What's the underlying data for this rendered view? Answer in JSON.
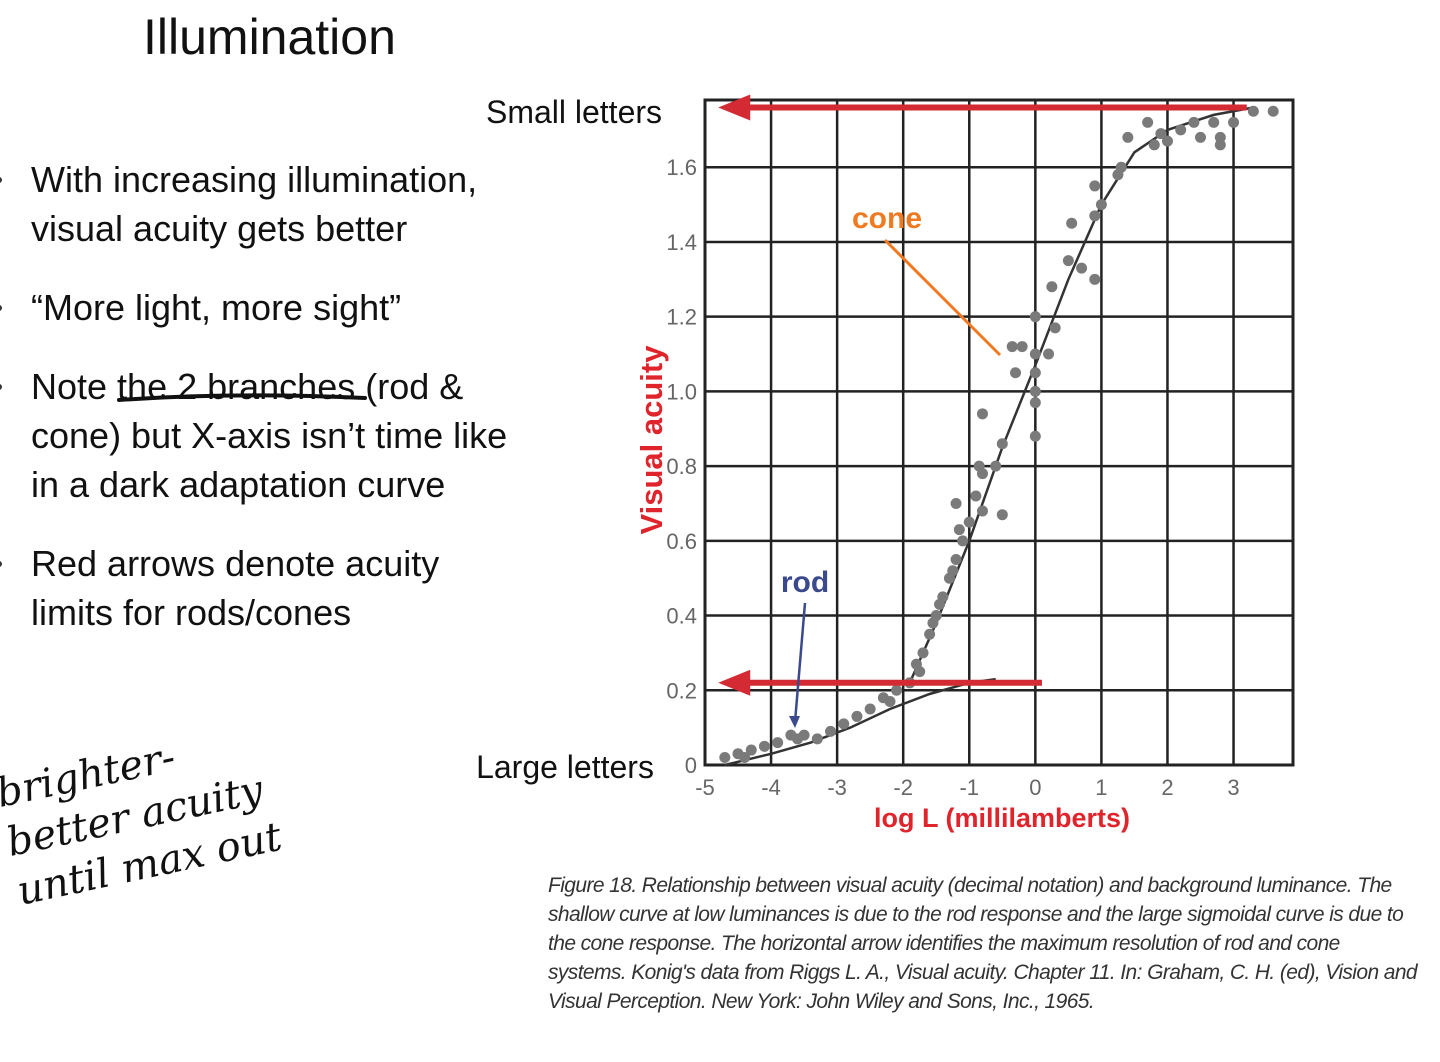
{
  "slide": {
    "title": "Illumination",
    "bullets": [
      "With increasing illumination, visual acuity gets better",
      "“More light, more sight”",
      "Note the 2 branches (rod & cone) but X-axis isn’t time like in a dark adaptation curve",
      "Red arrows denote acuity limits for rods/cones"
    ],
    "handwritten_note": [
      "brighter-",
      "better acuity",
      "until max out"
    ],
    "caption": "Figure 18. Relationship between visual acuity (decimal notation) and background luminance. The shallow curve at low luminances is due to the rod response and the large sigmoidal curve is due to the cone response. The horizontal arrow identifies the maximum resolution of rod and cone systems. Konig's data from Riggs L. A., Visual acuity. Chapter 11. In: Graham, C. H. (ed), Vision and Visual Perception. New York: John Wiley and Sons, Inc., 1965."
  },
  "chart_data": {
    "type": "scatter",
    "xlabel": "log L (millilamberts)",
    "ylabel": "Visual acuity",
    "xlim": [
      -5,
      3.9
    ],
    "ylim": [
      0,
      1.78
    ],
    "xticks": [
      "-5",
      "-4",
      "-3",
      "-2",
      "-1",
      "0",
      "1",
      "2",
      "3"
    ],
    "yticks": [
      "0",
      "0.2",
      "0.4",
      "0.6",
      "0.8",
      "1.0",
      "1.2",
      "1.4",
      "1.6"
    ],
    "grid": true,
    "annotations": {
      "top": "Small letters",
      "bottom": "Large letters",
      "cone": "cone",
      "rod": "rod"
    },
    "arrows": [
      {
        "name": "cone limit",
        "y": 1.76,
        "from_x": 3.2,
        "to_x": -4.8
      },
      {
        "name": "rod limit",
        "y": 0.22,
        "from_x": 0.1,
        "to_x": -4.8
      }
    ],
    "points": [
      [
        -4.7,
        0.02
      ],
      [
        -4.5,
        0.03
      ],
      [
        -4.4,
        0.02
      ],
      [
        -4.3,
        0.04
      ],
      [
        -4.1,
        0.05
      ],
      [
        -3.9,
        0.06
      ],
      [
        -3.7,
        0.08
      ],
      [
        -3.6,
        0.07
      ],
      [
        -3.5,
        0.08
      ],
      [
        -3.3,
        0.07
      ],
      [
        -3.1,
        0.09
      ],
      [
        -2.9,
        0.11
      ],
      [
        -2.7,
        0.13
      ],
      [
        -2.5,
        0.15
      ],
      [
        -2.3,
        0.18
      ],
      [
        -2.2,
        0.17
      ],
      [
        -2.1,
        0.2
      ],
      [
        -1.9,
        0.22
      ],
      [
        -1.8,
        0.27
      ],
      [
        -1.7,
        0.3
      ],
      [
        -1.75,
        0.25
      ],
      [
        -1.6,
        0.35
      ],
      [
        -1.55,
        0.38
      ],
      [
        -1.5,
        0.4
      ],
      [
        -1.45,
        0.43
      ],
      [
        -1.4,
        0.45
      ],
      [
        -1.3,
        0.5
      ],
      [
        -1.25,
        0.52
      ],
      [
        -1.2,
        0.55
      ],
      [
        -1.1,
        0.6
      ],
      [
        -1.15,
        0.63
      ],
      [
        -1.0,
        0.65
      ],
      [
        -1.2,
        0.7
      ],
      [
        -0.9,
        0.72
      ],
      [
        -0.8,
        0.78
      ],
      [
        -0.85,
        0.8
      ],
      [
        -0.6,
        0.8
      ],
      [
        -0.5,
        0.86
      ],
      [
        -0.8,
        0.94
      ],
      [
        -0.5,
        0.67
      ],
      [
        -0.8,
        0.68
      ],
      [
        -0.3,
        1.05
      ],
      [
        -0.35,
        1.12
      ],
      [
        -0.2,
        1.12
      ],
      [
        0,
        1.1
      ],
      [
        0,
        1.05
      ],
      [
        0,
        1.0
      ],
      [
        0,
        0.97
      ],
      [
        0,
        0.88
      ],
      [
        0,
        1.2
      ],
      [
        0.2,
        1.1
      ],
      [
        0.3,
        1.17
      ],
      [
        0.25,
        1.28
      ],
      [
        0.5,
        1.35
      ],
      [
        0.7,
        1.33
      ],
      [
        0.9,
        1.3
      ],
      [
        0.55,
        1.45
      ],
      [
        0.9,
        1.47
      ],
      [
        0.9,
        1.55
      ],
      [
        1.0,
        1.5
      ],
      [
        1.3,
        1.6
      ],
      [
        1.25,
        1.58
      ],
      [
        1.4,
        1.68
      ],
      [
        1.7,
        1.72
      ],
      [
        1.8,
        1.66
      ],
      [
        1.9,
        1.69
      ],
      [
        2.0,
        1.67
      ],
      [
        2.2,
        1.7
      ],
      [
        2.4,
        1.72
      ],
      [
        2.5,
        1.68
      ],
      [
        2.8,
        1.68
      ],
      [
        2.8,
        1.66
      ],
      [
        2.7,
        1.72
      ],
      [
        3.0,
        1.72
      ],
      [
        3.3,
        1.75
      ],
      [
        3.6,
        1.75
      ]
    ],
    "curves": [
      {
        "name": "rod",
        "points": [
          [
            -4.7,
            0.0
          ],
          [
            -4.0,
            0.03
          ],
          [
            -3.4,
            0.06
          ],
          [
            -2.8,
            0.1
          ],
          [
            -2.2,
            0.15
          ],
          [
            -1.6,
            0.19
          ],
          [
            -1.0,
            0.22
          ],
          [
            -0.6,
            0.23
          ]
        ]
      },
      {
        "name": "cone",
        "points": [
          [
            -1.9,
            0.22
          ],
          [
            -1.5,
            0.38
          ],
          [
            -1.0,
            0.6
          ],
          [
            -0.5,
            0.85
          ],
          [
            0.0,
            1.07
          ],
          [
            0.5,
            1.3
          ],
          [
            1.0,
            1.5
          ],
          [
            1.5,
            1.64
          ],
          [
            2.0,
            1.7
          ],
          [
            2.7,
            1.74
          ],
          [
            3.3,
            1.76
          ]
        ]
      }
    ],
    "colors": {
      "axis_label": "#e0242c",
      "arrow": "#d42a34",
      "cone_label": "#ee7a22",
      "rod_label": "#3b4a8c",
      "points": "#7a7a7a"
    }
  }
}
